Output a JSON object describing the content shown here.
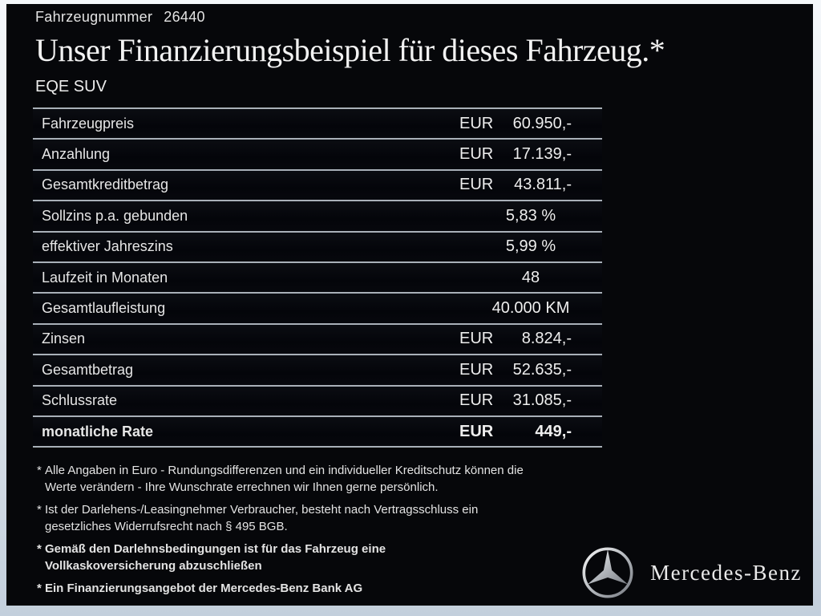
{
  "colors": {
    "background": "#06070a",
    "text": "#e9e9e9",
    "rule": "#a9b0b8",
    "frame_top": "#f4f7fa",
    "frame_bottom": "#c3cfdc"
  },
  "header": {
    "vehicle_number_label": "Fahrzeugnummer",
    "vehicle_number": "26440"
  },
  "title": "Unser Finanzierungsbeispiel für dieses Fahrzeug.*",
  "model": "EQE SUV",
  "finance_table": {
    "rows": [
      {
        "label": "Fahrzeugpreis",
        "currency": "EUR",
        "value": "60.950,-"
      },
      {
        "label": "Anzahlung",
        "currency": "EUR",
        "value": "17.139,-"
      },
      {
        "label": "Gesamtkreditbetrag",
        "currency": "EUR",
        "value": "43.811,-"
      },
      {
        "label": "Sollzins p.a. gebunden",
        "value": "5,83 %"
      },
      {
        "label": "effektiver Jahreszins",
        "value": "5,99 %"
      },
      {
        "label": "Laufzeit in Monaten",
        "value": "48"
      },
      {
        "label": "Gesamtlaufleistung",
        "value": "40.000 KM"
      },
      {
        "label": "Zinsen",
        "currency": "EUR",
        "value": "8.824,-"
      },
      {
        "label": "Gesamtbetrag",
        "currency": "EUR",
        "value": "52.635,-"
      },
      {
        "label": "Schlussrate",
        "currency": "EUR",
        "value": "31.085,-"
      },
      {
        "label": "monatliche Rate",
        "currency": "EUR",
        "value": "449,-",
        "bold": true
      }
    ]
  },
  "footnotes": [
    {
      "marker": "*",
      "bold": false,
      "lines": [
        "Alle Angaben in Euro - Rundungsdifferenzen und ein individueller Kreditschutz können die",
        "Werte verändern - Ihre Wunschrate errechnen wir Ihnen gerne persönlich."
      ]
    },
    {
      "marker": "*",
      "bold": false,
      "lines": [
        "Ist der Darlehens-/Leasingnehmer Verbraucher, besteht nach Vertragsschluss ein",
        "gesetzliches Widerrufsrecht nach § 495 BGB."
      ]
    },
    {
      "marker": "*",
      "bold": true,
      "lines": [
        "Gemäß den Darlehnsbedingungen ist für das Fahrzeug eine",
        "Vollkaskoversicherung abzuschließen"
      ]
    },
    {
      "marker": "*",
      "bold": true,
      "lines": [
        "Ein Finanzierungsangebot der Mercedes-Benz Bank AG"
      ]
    }
  ],
  "brand": {
    "logo_icon": "mercedes-star-icon",
    "wordmark": "Mercedes-Benz"
  }
}
